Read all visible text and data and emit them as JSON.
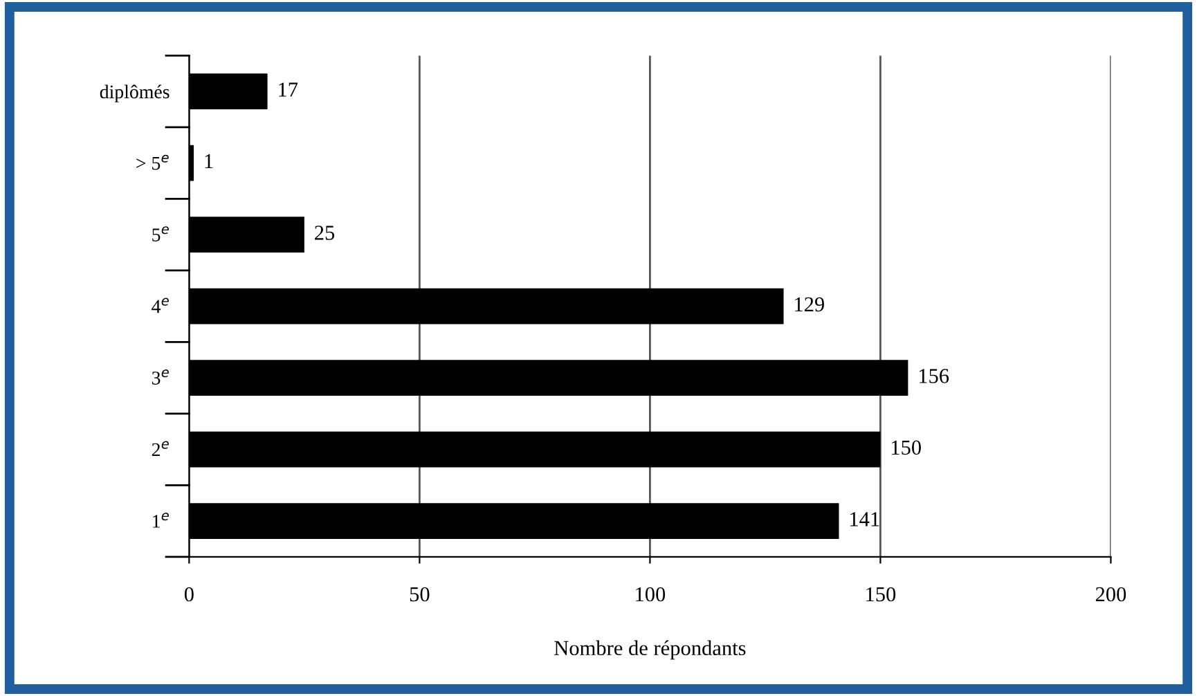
{
  "chart_data": {
    "type": "bar",
    "orientation": "horizontal",
    "categories": [
      "diplômés",
      "> 5$^{e}$",
      "5$^{e}$",
      "4$^{e}$",
      "3$^{e}$",
      "2$^{e}$",
      "1$^{e}$"
    ],
    "values": [
      17,
      1,
      25,
      129,
      156,
      150,
      141
    ],
    "color": "#000000",
    "xlim": [
      0,
      200
    ],
    "xticks": [
      0,
      50,
      100,
      150,
      200
    ],
    "xlabel": "Nombre de répondants",
    "data_labels": true,
    "grid": "x",
    "legend": false
  }
}
